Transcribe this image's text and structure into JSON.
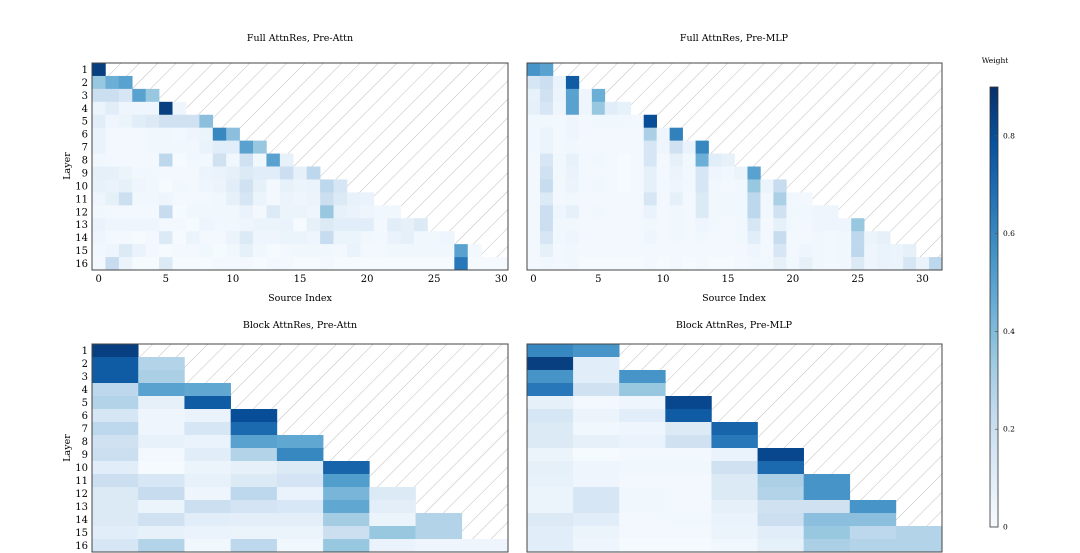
{
  "chart_data": [
    {
      "type": "heatmap",
      "title": "Full AttnRes, Pre-Attn",
      "xlabel": "Source Index",
      "ylabel": "Layer",
      "xlim": [
        -0.5,
        30.5
      ],
      "xticks": [
        0,
        5,
        10,
        15,
        20,
        25,
        30
      ],
      "yticks": [
        "1",
        "2",
        "3",
        "4",
        "5",
        "6",
        "7",
        "8",
        "9",
        "10",
        "11",
        "12",
        "13",
        "14",
        "15",
        "16"
      ],
      "masked_region": "upper-right (hatched)",
      "rows": [
        [
          0.85
        ],
        [
          0.35,
          0.45,
          0.5
        ],
        [
          0.2,
          0.2,
          0.15,
          0.5,
          0.35
        ],
        [
          0.05,
          0.1,
          0.04,
          0.04,
          0.04,
          0.85,
          0.04
        ],
        [
          0.1,
          0.04,
          0.05,
          0.1,
          0.12,
          0.18,
          0.18,
          0.18,
          0.38
        ],
        [
          0.06,
          0.02,
          0.02,
          0.02,
          0.03,
          0.03,
          0.02,
          0.04,
          0.05,
          0.6,
          0.38
        ],
        [
          0.06,
          0.02,
          0.02,
          0.02,
          0.03,
          0.03,
          0.03,
          0.03,
          0.06,
          0.1,
          0.1,
          0.5,
          0.35
        ],
        [
          0.03,
          0.02,
          0.02,
          0.02,
          0.02,
          0.25,
          0.01,
          0.03,
          0.02,
          0.18,
          0.03,
          0.18,
          0.03,
          0.5,
          0.07
        ],
        [
          0.08,
          0.08,
          0.05,
          0.03,
          0.03,
          0.02,
          0.02,
          0.02,
          0.05,
          0.06,
          0.08,
          0.12,
          0.1,
          0.1,
          0.2,
          0.08,
          0.25
        ],
        [
          0.07,
          0.06,
          0.08,
          0.04,
          0.03,
          0.01,
          0.03,
          0.02,
          0.04,
          0.05,
          0.1,
          0.18,
          0.08,
          0.02,
          0.07,
          0.05,
          0.06,
          0.25,
          0.15
        ],
        [
          0.04,
          0.08,
          0.2,
          0.03,
          0.03,
          0.04,
          0.02,
          0.02,
          0.02,
          0.03,
          0.08,
          0.15,
          0.05,
          0.02,
          0.05,
          0.04,
          0.05,
          0.2,
          0.12,
          0.07,
          0.06
        ],
        [
          0.03,
          0.02,
          0.02,
          0.02,
          0.02,
          0.22,
          0.01,
          0.03,
          0.03,
          0.03,
          0.03,
          0.06,
          0.02,
          0.12,
          0.05,
          0.05,
          0.04,
          0.35,
          0.07,
          0.06,
          0.04,
          0.03,
          0.03
        ],
        [
          0.06,
          0.04,
          0.04,
          0.04,
          0.04,
          0.02,
          0.02,
          0.01,
          0.04,
          0.03,
          0.03,
          0.04,
          0.05,
          0.05,
          0.06,
          0.01,
          0.08,
          0.12,
          0.1,
          0.1,
          0.1,
          0.02,
          0.1,
          0.08,
          0.12
        ],
        [
          0.04,
          0.02,
          0.02,
          0.01,
          0.02,
          0.12,
          0.01,
          0.05,
          0.02,
          0.02,
          0.05,
          0.12,
          0.04,
          0.04,
          0.05,
          0.05,
          0.04,
          0.22,
          0.05,
          0.05,
          0.03,
          0.02,
          0.06,
          0.08,
          0.03,
          0.03,
          0.04
        ],
        [
          0.03,
          0.04,
          0.12,
          0.06,
          0.02,
          0.01,
          0.02,
          0.02,
          0.03,
          0.01,
          0.03,
          0.08,
          0.03,
          0.01,
          0.02,
          0.03,
          0.03,
          0.03,
          0.02,
          0.06,
          0.02,
          0.02,
          0.03,
          0.03,
          0.03,
          0.03,
          0.03,
          0.5,
          0.02
        ],
        [
          0.02,
          0.22,
          0.05,
          0.01,
          0.01,
          0.12,
          0.01,
          0.01,
          0.01,
          0.02,
          0.02,
          0.02,
          0.01,
          0.02,
          0.02,
          0.01,
          0.01,
          0.02,
          0.01,
          0.01,
          0.01,
          0.01,
          0.01,
          0.01,
          0.01,
          0.01,
          0.01,
          0.65,
          0.01,
          0.01,
          0.01
        ]
      ]
    },
    {
      "type": "heatmap",
      "title": "Full AttnRes, Pre-MLP",
      "xlabel": "Source Index",
      "ylabel": "",
      "xlim": [
        -0.5,
        31.5
      ],
      "xticks": [
        0,
        5,
        10,
        15,
        20,
        25,
        30
      ],
      "yticks": [],
      "masked_region": "upper-right (hatched)",
      "rows": [
        [
          0.55,
          0.5
        ],
        [
          0.15,
          0.2,
          0.06,
          0.75
        ],
        [
          0.07,
          0.18,
          0.05,
          0.5,
          0.04,
          0.45
        ],
        [
          0.08,
          0.15,
          0.04,
          0.5,
          0.04,
          0.35,
          0.1,
          0.07
        ],
        [
          0.03,
          0.03,
          0.02,
          0.04,
          0.02,
          0.03,
          0.03,
          0.03,
          0.02,
          0.8
        ],
        [
          0.03,
          0.05,
          0.02,
          0.04,
          0.02,
          0.02,
          0.02,
          0.02,
          0.02,
          0.3,
          0.04,
          0.62
        ],
        [
          0.03,
          0.05,
          0.02,
          0.03,
          0.02,
          0.02,
          0.02,
          0.02,
          0.02,
          0.15,
          0.04,
          0.18,
          0.06,
          0.6
        ],
        [
          0.02,
          0.15,
          0.03,
          0.07,
          0.02,
          0.03,
          0.02,
          0.01,
          0.02,
          0.15,
          0.02,
          0.08,
          0.03,
          0.45,
          0.1,
          0.07
        ],
        [
          0.02,
          0.18,
          0.03,
          0.06,
          0.02,
          0.02,
          0.02,
          0.01,
          0.02,
          0.08,
          0.02,
          0.05,
          0.03,
          0.15,
          0.04,
          0.03,
          0.05,
          0.5
        ],
        [
          0.02,
          0.22,
          0.03,
          0.05,
          0.02,
          0.03,
          0.02,
          0.01,
          0.02,
          0.08,
          0.02,
          0.04,
          0.03,
          0.15,
          0.03,
          0.02,
          0.03,
          0.35,
          0.05,
          0.22
        ],
        [
          0.02,
          0.12,
          0.02,
          0.03,
          0.02,
          0.02,
          0.02,
          0.02,
          0.02,
          0.15,
          0.02,
          0.08,
          0.02,
          0.12,
          0.03,
          0.03,
          0.03,
          0.25,
          0.03,
          0.3,
          0.03,
          0.02
        ],
        [
          0.02,
          0.2,
          0.04,
          0.08,
          0.02,
          0.03,
          0.02,
          0.02,
          0.02,
          0.06,
          0.02,
          0.03,
          0.02,
          0.12,
          0.03,
          0.03,
          0.03,
          0.25,
          0.03,
          0.18,
          0.03,
          0.03,
          0.04,
          0.04
        ],
        [
          0.02,
          0.2,
          0.03,
          0.03,
          0.02,
          0.02,
          0.02,
          0.02,
          0.02,
          0.03,
          0.02,
          0.03,
          0.02,
          0.04,
          0.03,
          0.02,
          0.03,
          0.15,
          0.02,
          0.08,
          0.03,
          0.02,
          0.04,
          0.04,
          0.04,
          0.35
        ],
        [
          0.02,
          0.15,
          0.03,
          0.04,
          0.02,
          0.02,
          0.02,
          0.02,
          0.02,
          0.04,
          0.02,
          0.03,
          0.02,
          0.03,
          0.02,
          0.02,
          0.03,
          0.1,
          0.02,
          0.22,
          0.02,
          0.02,
          0.03,
          0.02,
          0.03,
          0.25,
          0.05,
          0.08
        ],
        [
          0.02,
          0.08,
          0.02,
          0.03,
          0.02,
          0.02,
          0.02,
          0.02,
          0.02,
          0.02,
          0.02,
          0.02,
          0.02,
          0.02,
          0.02,
          0.02,
          0.02,
          0.04,
          0.02,
          0.15,
          0.02,
          0.04,
          0.03,
          0.02,
          0.03,
          0.25,
          0.04,
          0.06,
          0.05,
          0.08
        ],
        [
          0.02,
          0.03,
          0.02,
          0.03,
          0.01,
          0.01,
          0.01,
          0.01,
          0.01,
          0.02,
          0.01,
          0.02,
          0.01,
          0.02,
          0.01,
          0.01,
          0.02,
          0.03,
          0.03,
          0.08,
          0.03,
          0.08,
          0.03,
          0.02,
          0.03,
          0.12,
          0.04,
          0.06,
          0.05,
          0.15,
          0.06,
          0.25
        ]
      ]
    },
    {
      "type": "heatmap",
      "title": "Block AttnRes, Pre-Attn",
      "xlabel": "",
      "ylabel": "Layer",
      "xlim": [
        -0.5,
        8.5
      ],
      "xticks": [],
      "yticks": [
        "1",
        "2",
        "3",
        "4",
        "5",
        "6",
        "7",
        "8",
        "9",
        "10",
        "11",
        "12",
        "13",
        "14",
        "15",
        "16"
      ],
      "masked_region": "upper-right (hatched)",
      "rows": [
        [
          0.85
        ],
        [
          0.75,
          0.28
        ],
        [
          0.75,
          0.3
        ],
        [
          0.25,
          0.5,
          0.48
        ],
        [
          0.28,
          0.08,
          0.75
        ],
        [
          0.15,
          0.04,
          0.06,
          0.8
        ],
        [
          0.25,
          0.04,
          0.15,
          0.7
        ],
        [
          0.18,
          0.07,
          0.06,
          0.5,
          0.48
        ],
        [
          0.2,
          0.02,
          0.1,
          0.28,
          0.6
        ],
        [
          0.1,
          0.01,
          0.05,
          0.08,
          0.12,
          0.72
        ],
        [
          0.2,
          0.14,
          0.07,
          0.12,
          0.16,
          0.52
        ],
        [
          0.12,
          0.22,
          0.04,
          0.25,
          0.06,
          0.42,
          0.12
        ],
        [
          0.12,
          0.05,
          0.2,
          0.16,
          0.14,
          0.48,
          0.09
        ],
        [
          0.12,
          0.18,
          0.1,
          0.09,
          0.09,
          0.32,
          0.05,
          0.28
        ],
        [
          0.1,
          0.07,
          0.06,
          0.05,
          0.05,
          0.2,
          0.35,
          0.28
        ],
        [
          0.15,
          0.28,
          0.03,
          0.25,
          0.03,
          0.35,
          0.06,
          0.04,
          0.04
        ]
      ]
    },
    {
      "type": "heatmap",
      "title": "Block AttnRes, Pre-MLP",
      "xlabel": "",
      "ylabel": "",
      "xlim": [
        -0.5,
        8.5
      ],
      "xticks": [],
      "yticks": [],
      "masked_region": "upper-right (hatched)",
      "rows": [
        [
          0.6,
          0.55
        ],
        [
          0.85,
          0.1
        ],
        [
          0.55,
          0.1,
          0.55
        ],
        [
          0.65,
          0.18,
          0.35
        ],
        [
          0.08,
          0.02,
          0.04,
          0.82
        ],
        [
          0.15,
          0.05,
          0.1,
          0.75
        ],
        [
          0.12,
          0.03,
          0.04,
          0.12,
          0.72
        ],
        [
          0.12,
          0.08,
          0.06,
          0.18,
          0.65
        ],
        [
          0.05,
          0.01,
          0.02,
          0.02,
          0.06,
          0.82
        ],
        [
          0.08,
          0.04,
          0.03,
          0.03,
          0.18,
          0.7
        ],
        [
          0.07,
          0.04,
          0.02,
          0.02,
          0.12,
          0.3,
          0.55
        ],
        [
          0.05,
          0.15,
          0.03,
          0.02,
          0.12,
          0.28,
          0.55
        ],
        [
          0.05,
          0.15,
          0.03,
          0.02,
          0.08,
          0.18,
          0.18,
          0.55
        ],
        [
          0.12,
          0.1,
          0.02,
          0.03,
          0.06,
          0.2,
          0.38,
          0.38
        ],
        [
          0.1,
          0.05,
          0.02,
          0.02,
          0.05,
          0.1,
          0.35,
          0.25,
          0.28
        ],
        [
          0.1,
          0.04,
          0.01,
          0.01,
          0.03,
          0.08,
          0.3,
          0.28,
          0.28
        ]
      ]
    }
  ],
  "colorbar": {
    "label": "Weight",
    "range": [
      0,
      0.9
    ],
    "ticks": [
      "0",
      "0.2",
      "0.4",
      "0.6",
      "0.8"
    ],
    "tick_values": [
      0,
      0.2,
      0.4,
      0.6,
      0.8
    ],
    "colormap": "Blues",
    "color_low": "#f7fbff",
    "color_high": "#08306b"
  }
}
